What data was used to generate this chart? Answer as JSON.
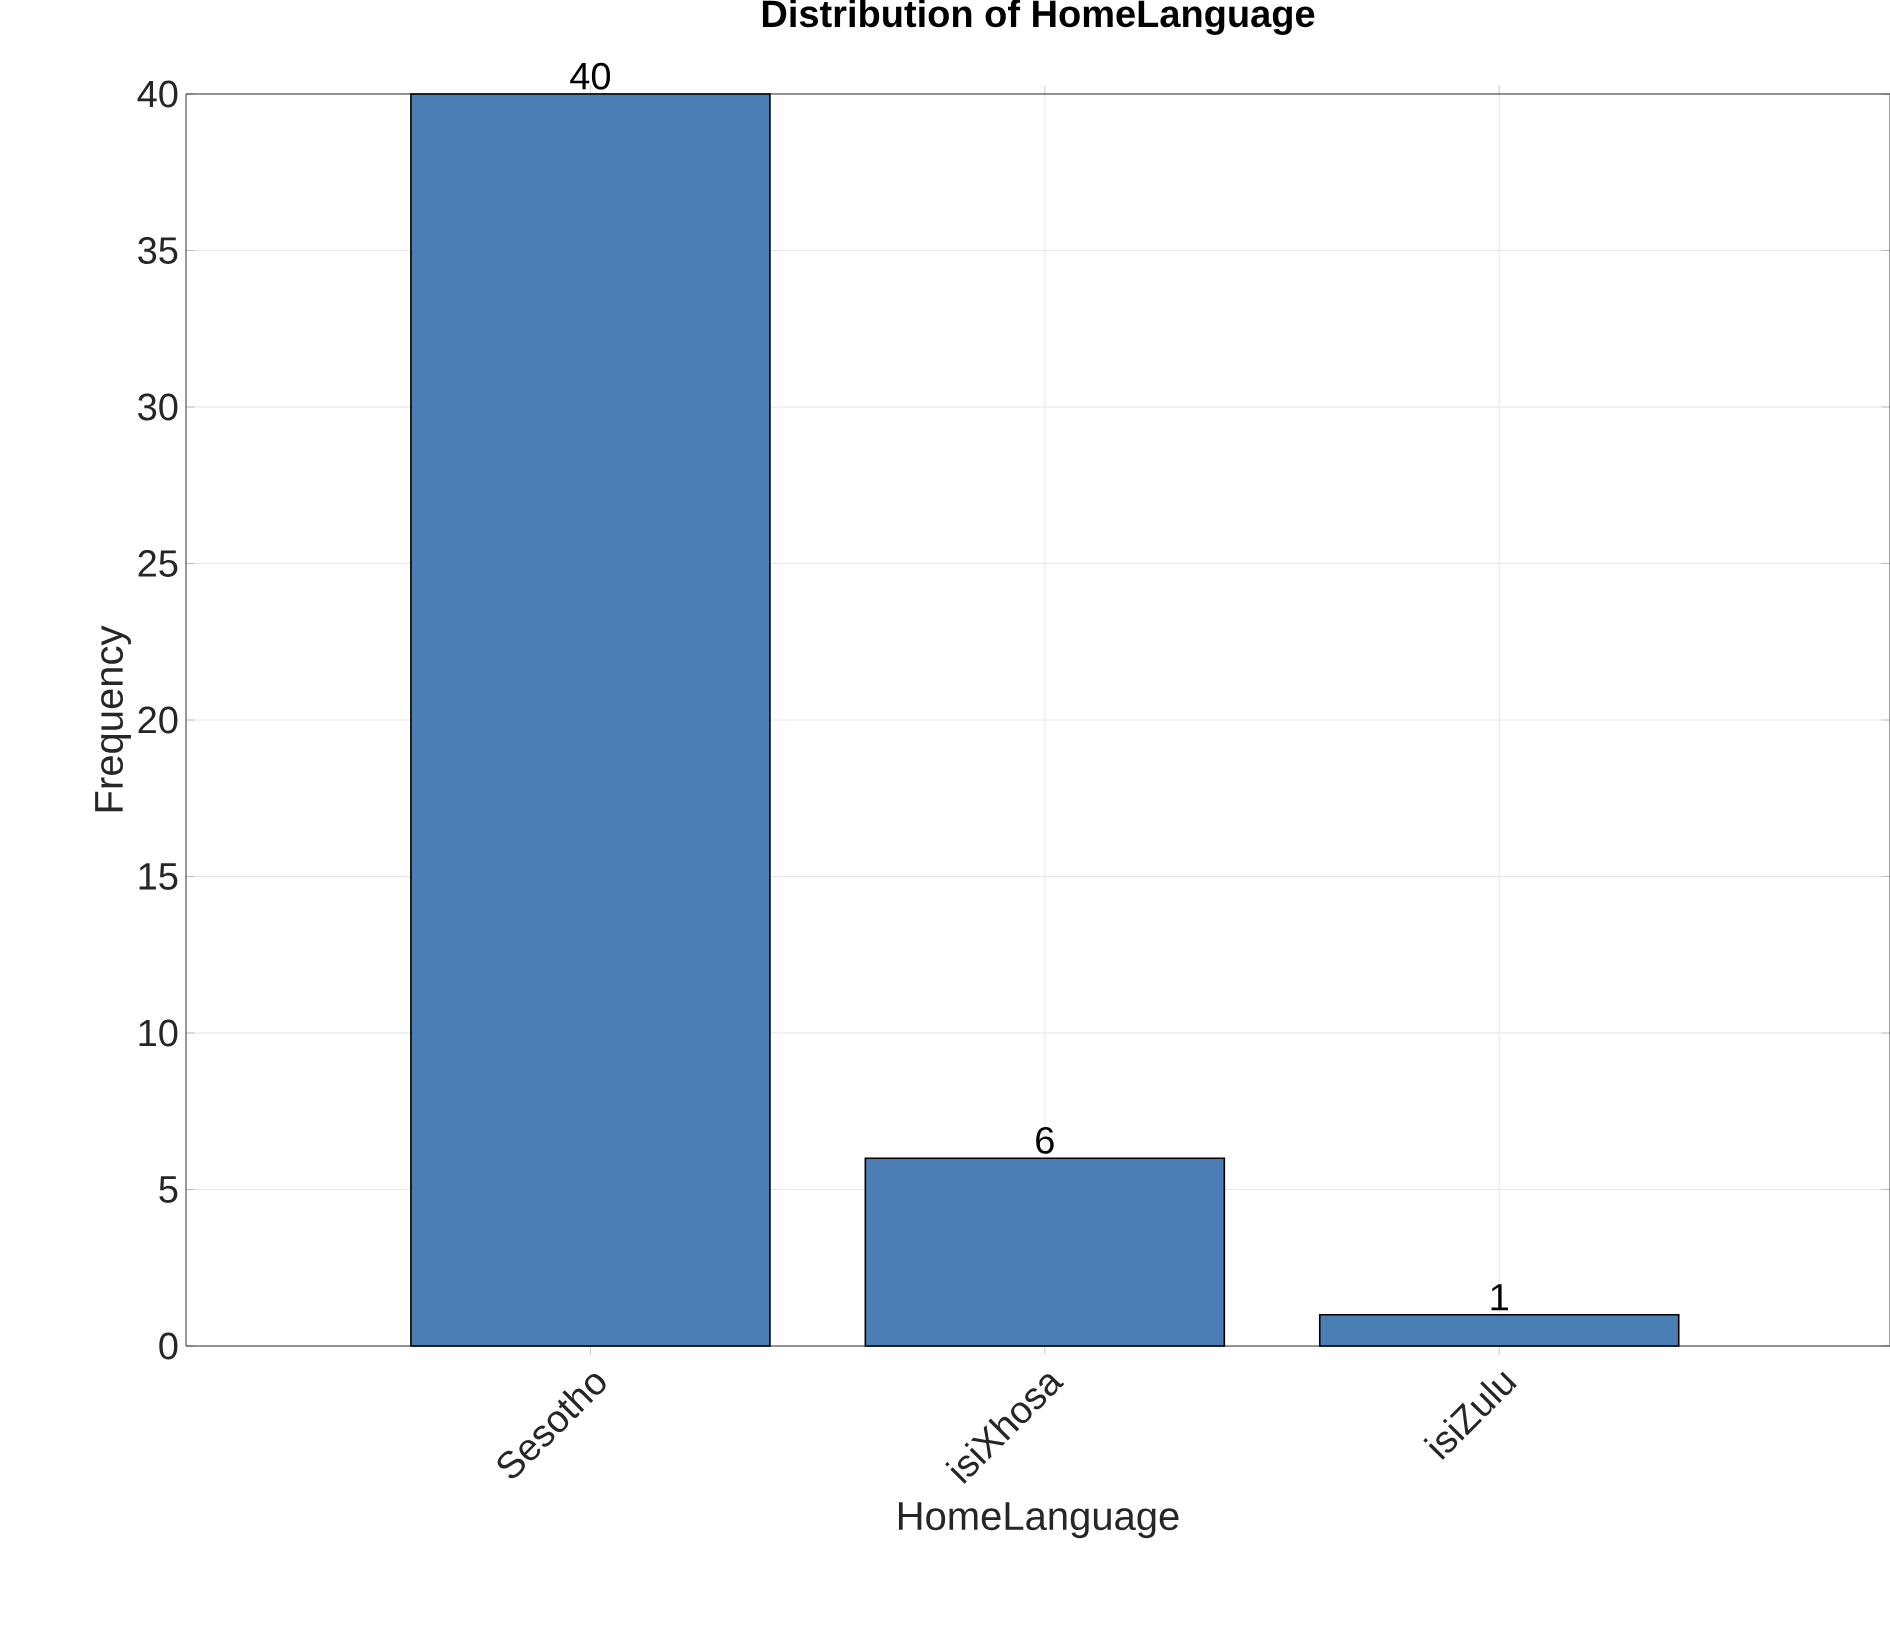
{
  "chart_data": {
    "type": "bar",
    "title": "Distribution of HomeLanguage",
    "xlabel": "HomeLanguage",
    "ylabel": "Frequency",
    "categories": [
      "Sesotho",
      "isiXhosa",
      "isiZulu"
    ],
    "values": [
      40,
      6,
      1
    ],
    "color": "#4a7eb4",
    "data_labels": true,
    "ylim": [
      0,
      40
    ],
    "yticks": [
      0,
      5,
      10,
      15,
      20,
      25,
      30,
      35,
      40
    ],
    "grid": true
  }
}
